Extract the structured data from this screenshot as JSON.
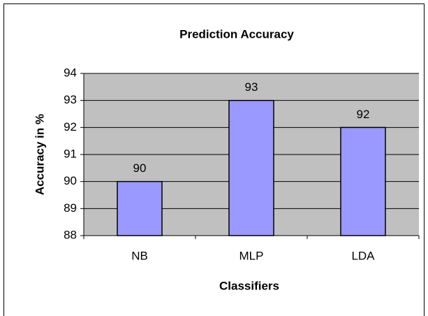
{
  "chart_data": {
    "type": "bar",
    "title": "Prediction Accuracy",
    "xlabel": "Classifiers",
    "ylabel": "Accuracy in %",
    "categories": [
      "NB",
      "MLP",
      "LDA"
    ],
    "values": [
      90,
      93,
      92
    ],
    "color": "#9999ff",
    "ylim": [
      88,
      94
    ],
    "yticks": [
      88,
      89,
      90,
      91,
      92,
      93,
      94
    ],
    "grid": true
  }
}
